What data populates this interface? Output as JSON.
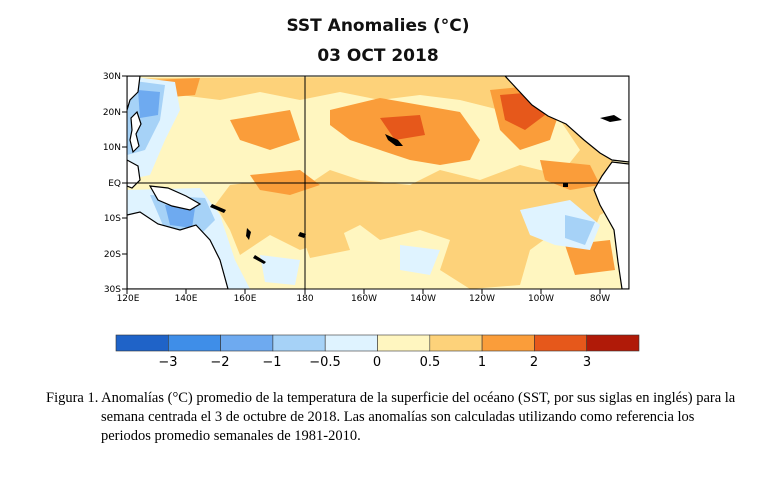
{
  "title": "SST Anomalies (°C)",
  "date": "03 OCT 2018",
  "map": {
    "lat_labels": [
      "30N",
      "20N",
      "10N",
      "EQ",
      "10S",
      "20S",
      "30S"
    ],
    "lon_labels": [
      "120E",
      "140E",
      "160E",
      "180",
      "160W",
      "140W",
      "120W",
      "100W",
      "80W"
    ]
  },
  "legend": {
    "colors": [
      "#1f63c8",
      "#3f8ee8",
      "#6eaaf0",
      "#a6d2f7",
      "#dff3ff",
      "#fff6c0",
      "#fdd27a",
      "#fa9d3a",
      "#e6581b",
      "#b01a08"
    ],
    "labels": [
      "−3",
      "−2",
      "−1",
      "−0.5",
      "0",
      "0.5",
      "1",
      "2",
      "3"
    ],
    "values": [
      -3,
      -2,
      -1,
      -0.5,
      0,
      0.5,
      1,
      2,
      3
    ]
  },
  "caption": "Figura 1. Anomalías (°C) promedio de la temperatura de la superficie del océano (SST, por sus siglas en inglés) para la semana centrada el 3 de octubre  de 2018. Las anomalías son calculadas utilizando como referencia los periodos promedio semanales de 1981-2010."
}
